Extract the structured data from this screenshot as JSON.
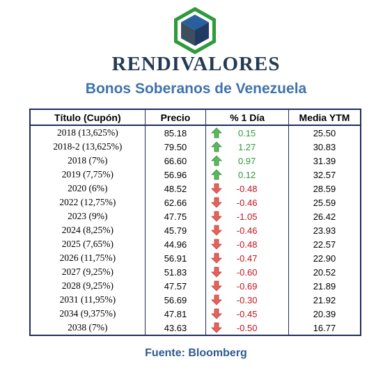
{
  "brand": {
    "name": "RENDIVALORES",
    "logo_icon": "cube-hexagon-logo",
    "colors": {
      "green": "#2e9a3a",
      "navy": "#243a52",
      "blue": "#3e73ad"
    }
  },
  "subtitle": "Bonos Soberanos de Venezuela",
  "table": {
    "headers": [
      "Título (Cupón)",
      "Precio",
      "% 1 Día",
      "Media YTM"
    ],
    "rows": [
      {
        "title": "2018 (13,625%)",
        "price": "85.18",
        "direction": "up",
        "change": "0.15",
        "ytm": "25.50"
      },
      {
        "title": "2018-2 (13,625%)",
        "price": "79.50",
        "direction": "up",
        "change": "1.27",
        "ytm": "30.83"
      },
      {
        "title": "2018 (7%)",
        "price": "66.60",
        "direction": "up",
        "change": "0.97",
        "ytm": "31.39"
      },
      {
        "title": "2019 (7,75%)",
        "price": "56.96",
        "direction": "up",
        "change": "0.12",
        "ytm": "32.57"
      },
      {
        "title": "2020 (6%)",
        "price": "48.52",
        "direction": "down",
        "change": "-0.48",
        "ytm": "28.59"
      },
      {
        "title": "2022 (12,75%)",
        "price": "62.66",
        "direction": "down",
        "change": "-0.46",
        "ytm": "25.59"
      },
      {
        "title": "2023 (9%)",
        "price": "47.75",
        "direction": "down",
        "change": "-1.05",
        "ytm": "26.42"
      },
      {
        "title": "2024 (8,25%)",
        "price": "45.79",
        "direction": "down",
        "change": "-0.46",
        "ytm": "23.93"
      },
      {
        "title": "2025 (7,65%)",
        "price": "44.96",
        "direction": "down",
        "change": "-0.48",
        "ytm": "22.57"
      },
      {
        "title": "2026 (11,75%)",
        "price": "56.91",
        "direction": "down",
        "change": "-0.47",
        "ytm": "22.90"
      },
      {
        "title": "2027 (9,25%)",
        "price": "51.83",
        "direction": "down",
        "change": "-0.60",
        "ytm": "20.52"
      },
      {
        "title": "2028 (9,25%)",
        "price": "47.57",
        "direction": "down",
        "change": "-0.69",
        "ytm": "21.89"
      },
      {
        "title": "2031 (11,95%)",
        "price": "56.69",
        "direction": "down",
        "change": "-0.30",
        "ytm": "21.92"
      },
      {
        "title": "2034 (9,375%)",
        "price": "47.81",
        "direction": "down",
        "change": "-0.45",
        "ytm": "20.39"
      },
      {
        "title": "2038 (7%)",
        "price": "43.63",
        "direction": "down",
        "change": "-0.50",
        "ytm": "16.77"
      }
    ],
    "arrow_colors": {
      "up": "#5cb85c",
      "down": "#e8605a"
    }
  },
  "source": "Fuente: Bloomberg"
}
